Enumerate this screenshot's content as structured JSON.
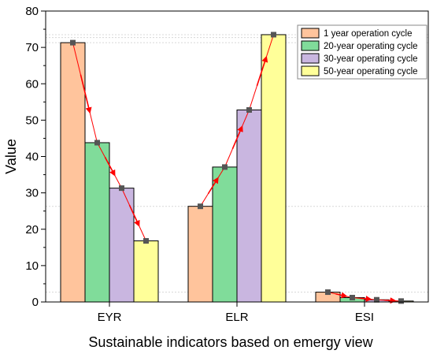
{
  "chart_data": {
    "type": "bar",
    "title": "",
    "xlabel": "Sustainable indicators based on emergy view",
    "ylabel": "Value",
    "ylim": [
      0,
      80
    ],
    "yticks": [
      0,
      10,
      20,
      30,
      40,
      50,
      60,
      70,
      80
    ],
    "categories": [
      "EYR",
      "ELR",
      "ESI"
    ],
    "series": [
      {
        "name": "1 year operation cycle",
        "color": "#FFC49C",
        "values": [
          71.3,
          26.3,
          2.7
        ]
      },
      {
        "name": "20-year operating cycle",
        "color": "#80DC9A",
        "values": [
          43.8,
          37.1,
          1.2
        ]
      },
      {
        "name": "30-year operating cycle",
        "color": "#C9B6E0",
        "values": [
          31.3,
          52.8,
          0.6
        ]
      },
      {
        "name": "50-year operating cycle",
        "color": "#FFFF99",
        "values": [
          16.8,
          73.5,
          0.25
        ]
      }
    ],
    "trend_line": {
      "color": "#FF0000",
      "marker_color": "#555555"
    },
    "grid": false,
    "legend_position": "top-right"
  }
}
